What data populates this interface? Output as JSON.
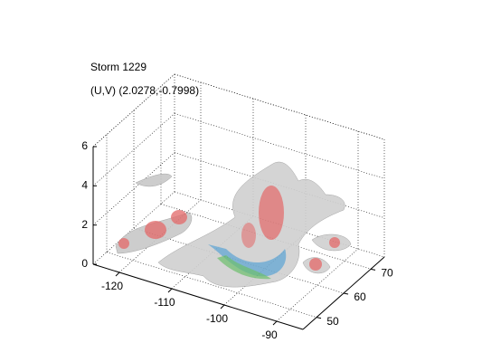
{
  "chart_data": {
    "type": "isosurface3d",
    "title": "Storm 1229",
    "subtitle": "(U,V) (2.0278,-0.7998)",
    "xlim": [
      -125,
      -85
    ],
    "xticks": [
      -120,
      -110,
      -100,
      -90
    ],
    "ylim": [
      45,
      75
    ],
    "yticks": [
      50,
      60,
      70
    ],
    "zlim": [
      0,
      6
    ],
    "zticks": [
      0,
      2,
      4,
      6
    ],
    "grid": true
  }
}
